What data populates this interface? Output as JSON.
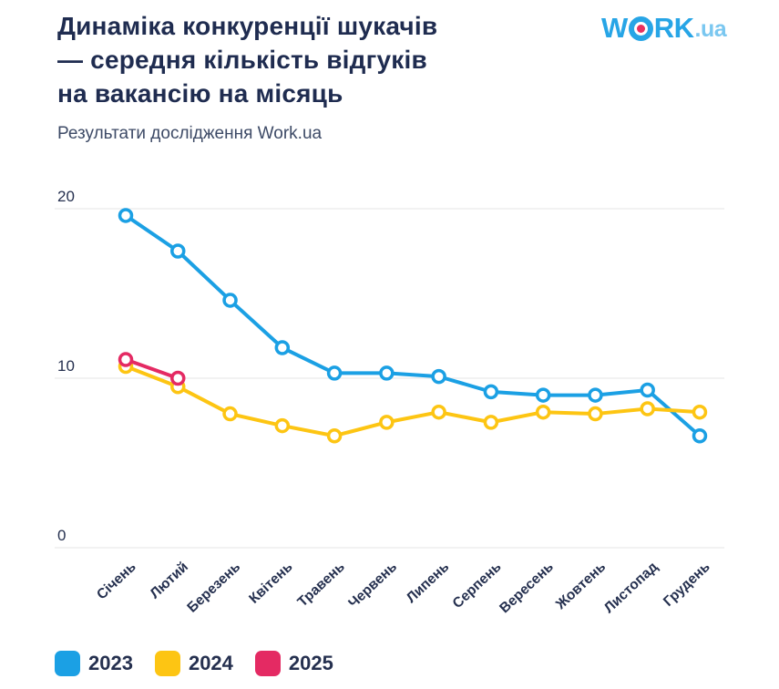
{
  "header": {
    "title": "Динаміка конкуренції шукачів\n— середня кількість відгуків\nна вакансію на місяць",
    "subtitle": "Результати дослідження Work.ua"
  },
  "logo": {
    "part1": "W",
    "part2": "RK",
    "suffix": ".ua",
    "word_color": "#27a5e6",
    "suffix_color": "#7ac7f0",
    "dot_color": "#e8305f"
  },
  "chart_data": {
    "type": "line",
    "title": "Динаміка конкуренції шукачів — середня кількість відгуків на вакансію на місяць",
    "categories": [
      "Січень",
      "Лютий",
      "Березень",
      "Квітень",
      "Травень",
      "Червень",
      "Липень",
      "Серпень",
      "Вересень",
      "Жовтень",
      "Листопад",
      "Грудень"
    ],
    "series": [
      {
        "name": "2023",
        "color": "#1ba0e4",
        "values": [
          19.6,
          17.5,
          14.6,
          11.8,
          10.3,
          10.3,
          10.1,
          9.2,
          9.0,
          9.0,
          9.3,
          6.6
        ]
      },
      {
        "name": "2024",
        "color": "#fdc513",
        "values": [
          10.7,
          9.5,
          7.9,
          7.2,
          6.6,
          7.4,
          8.0,
          7.4,
          8.0,
          7.9,
          8.2,
          8.0
        ]
      },
      {
        "name": "2025",
        "color": "#e42a63",
        "values": [
          11.1,
          10.0
        ]
      }
    ],
    "ylim": [
      0,
      20
    ],
    "yticks": [
      0,
      10,
      20
    ],
    "grid": true,
    "legend_position": "bottom",
    "axis_label_color": "#25304f",
    "gridline_color": "#ededed"
  }
}
